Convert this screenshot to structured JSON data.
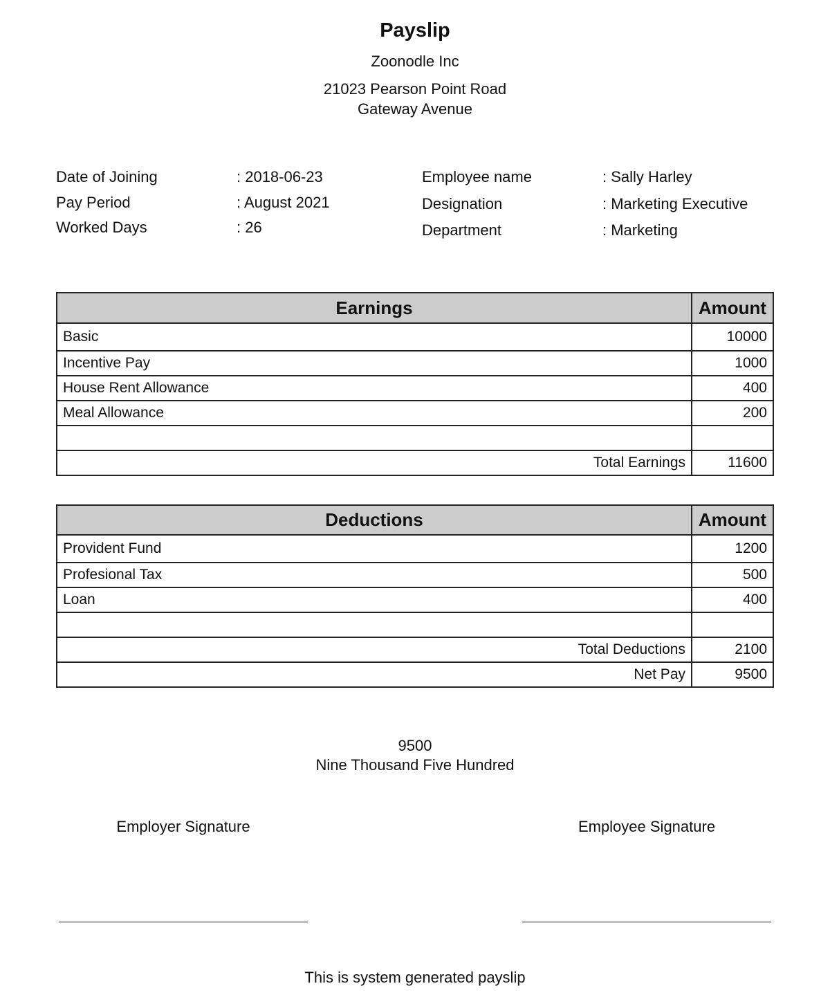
{
  "header": {
    "title": "Payslip",
    "company": "Zoonodle Inc",
    "address_line1": "21023 Pearson Point Road",
    "address_line2": "Gateway Avenue"
  },
  "info_left": [
    {
      "label": "Date of Joining",
      "value": ": 2018-06-23"
    },
    {
      "label": "Pay Period",
      "value": ": August 2021"
    },
    {
      "label": "Worked Days",
      "value": ": 26"
    }
  ],
  "info_right": [
    {
      "label": "Employee name",
      "value": ": Sally Harley"
    },
    {
      "label": "Designation",
      "value": ": Marketing Executive"
    },
    {
      "label": "Department",
      "value": ": Marketing"
    }
  ],
  "earnings": {
    "heading": "Earnings",
    "amount_heading": "Amount",
    "rows": [
      {
        "name": "Basic",
        "amount": "10000"
      },
      {
        "name": "Incentive Pay",
        "amount": "1000"
      },
      {
        "name": "House Rent Allowance",
        "amount": "400"
      },
      {
        "name": "Meal Allowance",
        "amount": "200"
      }
    ],
    "total_label": "Total Earnings",
    "total": "11600"
  },
  "deductions": {
    "heading": "Deductions",
    "amount_heading": "Amount",
    "rows": [
      {
        "name": "Provident Fund",
        "amount": "1200"
      },
      {
        "name": "Profesional Tax",
        "amount": "500"
      },
      {
        "name": "Loan",
        "amount": "400"
      }
    ],
    "total_label": "Total Deductions",
    "total": "2100",
    "net_label": "Net Pay",
    "net": "9500"
  },
  "net_pay": {
    "amount": "9500",
    "words": "Nine Thousand Five Hundred"
  },
  "signatures": {
    "employer": "Employer Signature",
    "employee": "Employee Signature"
  },
  "footer": "This is system generated payslip"
}
